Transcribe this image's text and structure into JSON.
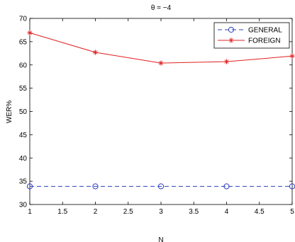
{
  "chart_data": {
    "type": "line",
    "title": "θ = −4",
    "xlabel": "N",
    "ylabel": "WER%",
    "xlim": [
      1,
      5
    ],
    "ylim": [
      30,
      70
    ],
    "xticks": [
      1,
      1.5,
      2,
      2.5,
      3,
      3.5,
      4,
      4.5,
      5
    ],
    "xtick_labels": [
      "1",
      "1.5",
      "2",
      "2.5",
      "3",
      "3.5",
      "4",
      "4.5",
      "5"
    ],
    "yticks": [
      30,
      35,
      40,
      45,
      50,
      55,
      60,
      65,
      70
    ],
    "ytick_labels": [
      "30",
      "35",
      "40",
      "45",
      "50",
      "55",
      "60",
      "65",
      "70"
    ],
    "grid": false,
    "legend_position": "top-right",
    "series": [
      {
        "name": "GENERAL",
        "color": "#3040c0",
        "line_style": "dashed",
        "marker": "circle-open",
        "x": [
          1,
          2,
          3,
          4,
          5
        ],
        "y": [
          33.9,
          33.9,
          33.9,
          33.9,
          33.9
        ]
      },
      {
        "name": "FOREIGN",
        "color": "#e02020",
        "line_style": "solid",
        "marker": "plus-star",
        "x": [
          1,
          2,
          3,
          4,
          5
        ],
        "y": [
          66.9,
          62.7,
          60.4,
          60.7,
          61.9
        ]
      }
    ]
  }
}
